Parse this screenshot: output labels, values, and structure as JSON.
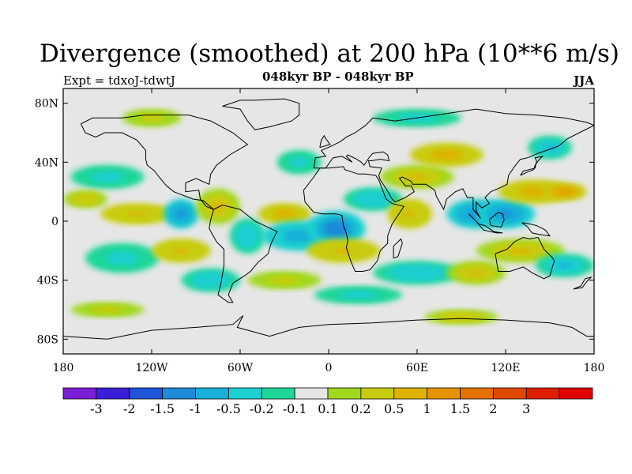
{
  "title": "Divergence (smoothed) at 200 hPa (10**6 m/s)",
  "subtitle": "048kyr BP - 048kyr BP",
  "experiment": "Expt = tdxoJ-tdwtJ",
  "season": "JJA",
  "map": {
    "projection": "cylindrical-equidistant",
    "lon_range": [
      -180,
      180
    ],
    "lat_range": [
      -90,
      90
    ],
    "x_ticks": [
      {
        "lon": -180,
        "label": "180"
      },
      {
        "lon": -120,
        "label": "120W"
      },
      {
        "lon": -60,
        "label": "60W"
      },
      {
        "lon": 0,
        "label": "0"
      },
      {
        "lon": 60,
        "label": "60E"
      },
      {
        "lon": 120,
        "label": "120E"
      },
      {
        "lon": 180,
        "label": "180"
      }
    ],
    "y_ticks": [
      {
        "lat": 80,
        "label": "80N"
      },
      {
        "lat": 40,
        "label": "40N"
      },
      {
        "lat": 0,
        "label": "0"
      },
      {
        "lat": -40,
        "label": "40S"
      },
      {
        "lat": -80,
        "label": "80S"
      }
    ],
    "background_color": "#e6e6e6"
  },
  "colorbar": {
    "colors": [
      "#7b1ed6",
      "#3a1fd9",
      "#1f55d9",
      "#1e8ad8",
      "#18b0d8",
      "#1ccfd0",
      "#1ed69a",
      "#e6e6e6",
      "#a0d81e",
      "#c8cc10",
      "#ddb300",
      "#e59300",
      "#e47200",
      "#e04800",
      "#de1e00",
      "#e00000"
    ],
    "labels": [
      "-3",
      "-2",
      "-1.5",
      "-1",
      "-0.5",
      "-0.2",
      "-0.1",
      "0.1",
      "0.2",
      "0.5",
      "1",
      "1.5",
      "2",
      "3"
    ]
  },
  "anomaly_fields": [
    {
      "lon": -150,
      "lat": 30,
      "rx": 25,
      "ry": 8,
      "value": -0.3
    },
    {
      "lon": -165,
      "lat": 15,
      "rx": 15,
      "ry": 6,
      "value": 0.4
    },
    {
      "lon": -130,
      "lat": 5,
      "rx": 25,
      "ry": 7,
      "value": 0.6
    },
    {
      "lon": -100,
      "lat": 5,
      "rx": 12,
      "ry": 10,
      "value": -1.2
    },
    {
      "lon": -75,
      "lat": 10,
      "rx": 15,
      "ry": 12,
      "value": 0.5
    },
    {
      "lon": -55,
      "lat": -10,
      "rx": 12,
      "ry": 12,
      "value": -0.4
    },
    {
      "lon": -30,
      "lat": 5,
      "rx": 18,
      "ry": 7,
      "value": 0.8
    },
    {
      "lon": -20,
      "lat": -10,
      "rx": 25,
      "ry": 10,
      "value": -0.8
    },
    {
      "lon": 5,
      "lat": -5,
      "rx": 20,
      "ry": 12,
      "value": -1.3
    },
    {
      "lon": 10,
      "lat": -20,
      "rx": 25,
      "ry": 8,
      "value": 0.6
    },
    {
      "lon": 30,
      "lat": 15,
      "rx": 20,
      "ry": 8,
      "value": -0.4
    },
    {
      "lon": 55,
      "lat": 5,
      "rx": 15,
      "ry": 10,
      "value": 0.6
    },
    {
      "lon": 60,
      "lat": 30,
      "rx": 25,
      "ry": 8,
      "value": 0.5
    },
    {
      "lon": 80,
      "lat": 45,
      "rx": 25,
      "ry": 8,
      "value": 0.8
    },
    {
      "lon": 100,
      "lat": 5,
      "rx": 20,
      "ry": 10,
      "value": -1.2
    },
    {
      "lon": 120,
      "lat": 5,
      "rx": 20,
      "ry": 10,
      "value": -1.0
    },
    {
      "lon": 140,
      "lat": 20,
      "rx": 25,
      "ry": 8,
      "value": 0.8
    },
    {
      "lon": 160,
      "lat": 20,
      "rx": 15,
      "ry": 6,
      "value": 1.2
    },
    {
      "lon": 130,
      "lat": -20,
      "rx": 30,
      "ry": 8,
      "value": 0.5
    },
    {
      "lon": 160,
      "lat": -30,
      "rx": 20,
      "ry": 8,
      "value": -0.5
    },
    {
      "lon": 60,
      "lat": -35,
      "rx": 30,
      "ry": 8,
      "value": -0.4
    },
    {
      "lon": 100,
      "lat": -35,
      "rx": 20,
      "ry": 8,
      "value": 0.5
    },
    {
      "lon": -140,
      "lat": -25,
      "rx": 25,
      "ry": 10,
      "value": -0.3
    },
    {
      "lon": -100,
      "lat": -20,
      "rx": 20,
      "ry": 8,
      "value": 0.6
    },
    {
      "lon": -80,
      "lat": -40,
      "rx": 20,
      "ry": 8,
      "value": -0.4
    },
    {
      "lon": -30,
      "lat": -40,
      "rx": 25,
      "ry": 6,
      "value": 0.3
    },
    {
      "lon": 20,
      "lat": -50,
      "rx": 30,
      "ry": 6,
      "value": -0.3
    },
    {
      "lon": -150,
      "lat": -60,
      "rx": 25,
      "ry": 5,
      "value": 0.3
    },
    {
      "lon": 90,
      "lat": -65,
      "rx": 25,
      "ry": 5,
      "value": 0.4
    },
    {
      "lon": -120,
      "lat": 70,
      "rx": 20,
      "ry": 6,
      "value": 0.3
    },
    {
      "lon": 60,
      "lat": 70,
      "rx": 30,
      "ry": 6,
      "value": -0.3
    },
    {
      "lon": 150,
      "lat": 50,
      "rx": 15,
      "ry": 8,
      "value": -0.5
    },
    {
      "lon": -20,
      "lat": 40,
      "rx": 15,
      "ry": 8,
      "value": -0.3
    }
  ]
}
